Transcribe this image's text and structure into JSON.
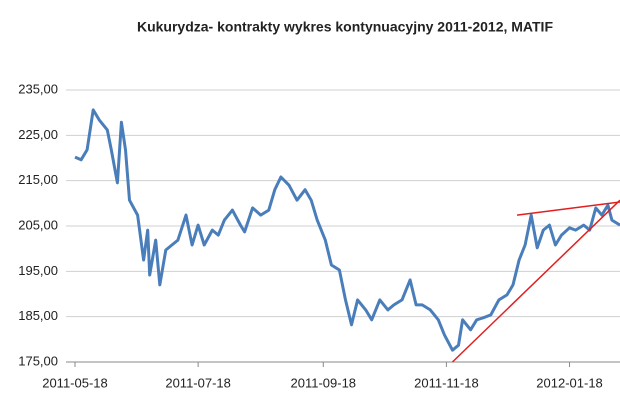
{
  "chart_data": {
    "type": "line",
    "title": "Kukurydza- kontrakty wykres kontynuacyjny 2011-2012,  MATIF",
    "x": [
      "2011-05-18",
      "2011-05-21",
      "2011-05-24",
      "2011-05-27",
      "2011-05-30",
      "2011-06-03",
      "2011-06-05",
      "2011-06-08",
      "2011-06-10",
      "2011-06-12",
      "2011-06-14",
      "2011-06-18",
      "2011-06-21",
      "2011-06-23",
      "2011-06-24",
      "2011-06-27",
      "2011-06-29",
      "2011-07-02",
      "2011-07-05",
      "2011-07-08",
      "2011-07-12",
      "2011-07-15",
      "2011-07-18",
      "2011-07-21",
      "2011-07-25",
      "2011-07-28",
      "2011-07-31",
      "2011-08-04",
      "2011-08-08",
      "2011-08-10",
      "2011-08-14",
      "2011-08-18",
      "2011-08-22",
      "2011-08-25",
      "2011-08-28",
      "2011-09-01",
      "2011-09-05",
      "2011-09-09",
      "2011-09-12",
      "2011-09-15",
      "2011-09-19",
      "2011-09-22",
      "2011-09-26",
      "2011-09-29",
      "2011-10-02",
      "2011-10-05",
      "2011-10-09",
      "2011-10-12",
      "2011-10-16",
      "2011-10-20",
      "2011-10-23",
      "2011-10-27",
      "2011-10-31",
      "2011-11-03",
      "2011-11-06",
      "2011-11-10",
      "2011-11-14",
      "2011-11-17",
      "2011-11-21",
      "2011-11-24",
      "2011-11-26",
      "2011-11-30",
      "2011-12-03",
      "2011-12-06",
      "2011-12-10",
      "2011-12-14",
      "2011-12-18",
      "2011-12-21",
      "2011-12-24",
      "2011-12-27",
      "2011-12-30",
      "2012-01-02",
      "2012-01-05",
      "2012-01-08",
      "2012-01-11",
      "2012-01-14",
      "2012-01-18",
      "2012-01-21",
      "2012-01-25",
      "2012-01-28",
      "2012-01-31",
      "2012-02-03",
      "2012-02-06",
      "2012-02-08",
      "2012-02-12"
    ],
    "series": [
      {
        "color": "#4a7ebb",
        "values": [
          220.2,
          219.6,
          221.8,
          230.6,
          228.4,
          226.2,
          221.8,
          214.5,
          227.9,
          221.8,
          210.7,
          207.4,
          197.5,
          204.1,
          194.2,
          201.9,
          192.0,
          199.7,
          200.8,
          201.9,
          207.4,
          200.8,
          205.2,
          200.8,
          204.1,
          203.0,
          206.3,
          208.5,
          205.2,
          203.7,
          209.0,
          207.4,
          208.5,
          213.0,
          215.8,
          214.0,
          210.7,
          213.0,
          210.7,
          206.3,
          201.9,
          196.4,
          195.3,
          188.7,
          183.2,
          188.7,
          186.5,
          184.3,
          188.7,
          186.5,
          187.6,
          188.7,
          193.1,
          187.6,
          187.6,
          186.5,
          184.3,
          181.0,
          177.6,
          178.7,
          184.3,
          182.1,
          184.3,
          184.7,
          185.4,
          188.7,
          189.8,
          192.0,
          197.5,
          200.8,
          207.4,
          200.2,
          204.1,
          205.2,
          200.8,
          203.0,
          204.6,
          204.1,
          205.2,
          204.1,
          209.0,
          207.4,
          209.6,
          206.3,
          205.2
        ]
      }
    ],
    "trend_lines": [
      {
        "color": "#e02020",
        "x": [
          "2011-11-21",
          "2012-02-12"
        ],
        "values": [
          175.0,
          210.7
        ]
      },
      {
        "color": "#e02020",
        "x": [
          "2011-12-23",
          "2012-02-12"
        ],
        "values": [
          207.4,
          210.3
        ]
      }
    ],
    "xlim": [
      "2011-05-18",
      "2012-02-12"
    ],
    "xticks": [
      "2011-05-18",
      "2011-07-18",
      "2011-09-18",
      "2011-11-18",
      "2012-01-18"
    ],
    "ylim": [
      175,
      235
    ],
    "yticks": [
      {
        "value": 175,
        "label": "175,00"
      },
      {
        "value": 185,
        "label": "185,00"
      },
      {
        "value": 195,
        "label": "195,00"
      },
      {
        "value": 205,
        "label": "205,00"
      },
      {
        "value": 215,
        "label": "215,00"
      },
      {
        "value": 225,
        "label": "225,00"
      },
      {
        "value": 235,
        "label": "235,00"
      }
    ],
    "grid": true
  }
}
